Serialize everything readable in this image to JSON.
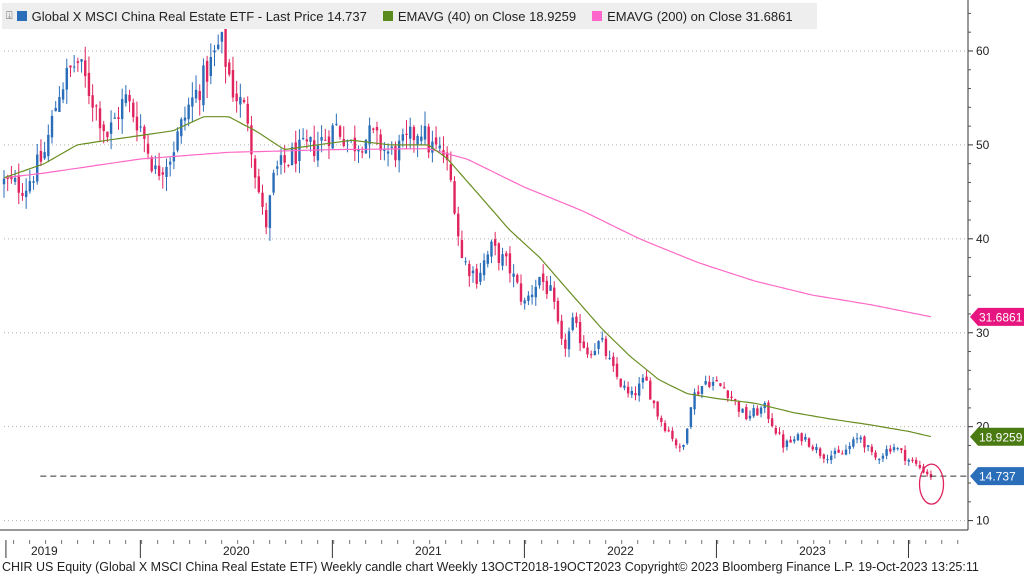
{
  "legend": {
    "menu_glyph": "⍗",
    "items": [
      {
        "label": "Global X MSCI China Real Estate ETF  - Last Price 14.737",
        "color": "#2a6db8"
      },
      {
        "label": "EMAVG (40)  on Close 18.9259",
        "color": "#5a8a1e"
      },
      {
        "label": "EMAVG (200)  on Close 31.6861",
        "color": "#ff66cc"
      }
    ]
  },
  "footer": {
    "text": "CHIR US Equity (Global X MSCI China Real Estate ETF) Weekly candle chart  Weekly 13OCT2018-19OCT2023  Copyright© 2023 Bloomberg Finance L.P.  19-Oct-2023 13:25:11"
  },
  "chart_data": {
    "type": "candlestick",
    "ylim": [
      9,
      65
    ],
    "y_ticks": [
      10,
      20,
      30,
      40,
      50,
      60
    ],
    "x_range": [
      2018.79,
      2023.81
    ],
    "x_ticks": [
      {
        "label": "2019",
        "pos": 2019.0
      },
      {
        "label": "2020",
        "pos": 2020.0
      },
      {
        "label": "2021",
        "pos": 2021.0
      },
      {
        "label": "2022",
        "pos": 2022.0
      },
      {
        "label": "2023",
        "pos": 2023.0
      }
    ],
    "colors": {
      "up": "#2a6db8",
      "down": "#e0245e",
      "ema40": "#6b8e23",
      "ema200": "#ff69c8",
      "grid": "#b0b0b0",
      "last_box": "#2a6db8",
      "ema40_box": "#4a7a12",
      "ema200_box": "#e6157f",
      "circle": "#e0245e"
    },
    "close_anchors": [
      [
        2018.79,
        46
      ],
      [
        2018.9,
        45.5
      ],
      [
        2019.0,
        49
      ],
      [
        2019.08,
        56
      ],
      [
        2019.17,
        59
      ],
      [
        2019.27,
        54
      ],
      [
        2019.33,
        51
      ],
      [
        2019.42,
        55
      ],
      [
        2019.5,
        52
      ],
      [
        2019.58,
        47
      ],
      [
        2019.66,
        49
      ],
      [
        2019.75,
        54
      ],
      [
        2019.83,
        57
      ],
      [
        2019.92,
        61
      ],
      [
        2019.98,
        56
      ],
      [
        2020.06,
        53
      ],
      [
        2020.1,
        47
      ],
      [
        2020.15,
        41
      ],
      [
        2020.2,
        47
      ],
      [
        2020.3,
        49
      ],
      [
        2020.42,
        50
      ],
      [
        2020.52,
        52
      ],
      [
        2020.6,
        50
      ],
      [
        2020.7,
        51
      ],
      [
        2020.8,
        49
      ],
      [
        2020.88,
        50
      ],
      [
        2020.96,
        52
      ],
      [
        2021.0,
        50
      ],
      [
        2021.08,
        49
      ],
      [
        2021.13,
        45
      ],
      [
        2021.17,
        38
      ],
      [
        2021.25,
        36
      ],
      [
        2021.33,
        39
      ],
      [
        2021.42,
        37
      ],
      [
        2021.5,
        33
      ],
      [
        2021.58,
        36
      ],
      [
        2021.64,
        34
      ],
      [
        2021.7,
        28
      ],
      [
        2021.75,
        31
      ],
      [
        2021.83,
        28
      ],
      [
        2021.9,
        29
      ],
      [
        2021.96,
        26
      ],
      [
        2022.05,
        23
      ],
      [
        2022.13,
        25
      ],
      [
        2022.2,
        21
      ],
      [
        2022.27,
        19
      ],
      [
        2022.32,
        17
      ],
      [
        2022.37,
        23
      ],
      [
        2022.45,
        25
      ],
      [
        2022.55,
        24
      ],
      [
        2022.65,
        21
      ],
      [
        2022.75,
        22
      ],
      [
        2022.85,
        18
      ],
      [
        2022.95,
        19
      ],
      [
        2023.05,
        17
      ],
      [
        2023.15,
        17
      ],
      [
        2023.25,
        19
      ],
      [
        2023.32,
        16.5
      ],
      [
        2023.42,
        18
      ],
      [
        2023.5,
        16.5
      ],
      [
        2023.57,
        15.5
      ],
      [
        2023.62,
        14.7
      ]
    ],
    "ema40_anchors": [
      [
        2018.79,
        46.5
      ],
      [
        2019.0,
        48
      ],
      [
        2019.17,
        50
      ],
      [
        2019.33,
        50.5
      ],
      [
        2019.5,
        51
      ],
      [
        2019.67,
        51.5
      ],
      [
        2019.83,
        53
      ],
      [
        2019.96,
        53
      ],
      [
        2020.1,
        51.5
      ],
      [
        2020.25,
        49.5
      ],
      [
        2020.42,
        50
      ],
      [
        2020.6,
        50.5
      ],
      [
        2020.8,
        50
      ],
      [
        2021.0,
        50
      ],
      [
        2021.1,
        48.5
      ],
      [
        2021.25,
        45
      ],
      [
        2021.42,
        41
      ],
      [
        2021.58,
        38
      ],
      [
        2021.75,
        34
      ],
      [
        2021.9,
        30.5
      ],
      [
        2022.05,
        27.5
      ],
      [
        2022.2,
        25
      ],
      [
        2022.35,
        23.5
      ],
      [
        2022.5,
        23
      ],
      [
        2022.7,
        22.5
      ],
      [
        2022.9,
        21.5
      ],
      [
        2023.1,
        20.8
      ],
      [
        2023.3,
        20.2
      ],
      [
        2023.5,
        19.5
      ],
      [
        2023.62,
        18.93
      ]
    ],
    "ema200_anchors": [
      [
        2018.79,
        46.5
      ],
      [
        2019.0,
        47
      ],
      [
        2019.5,
        48.5
      ],
      [
        2019.95,
        49.2
      ],
      [
        2020.5,
        49.5
      ],
      [
        2021.0,
        49.6
      ],
      [
        2021.2,
        48.5
      ],
      [
        2021.5,
        45.5
      ],
      [
        2021.8,
        43
      ],
      [
        2022.1,
        40
      ],
      [
        2022.4,
        37.5
      ],
      [
        2022.7,
        35.5
      ],
      [
        2023.0,
        34
      ],
      [
        2023.3,
        33
      ],
      [
        2023.62,
        31.69
      ]
    ],
    "last_price": 14.737,
    "ema40_last": 18.9259,
    "ema200_last": 31.6861,
    "last_price_label": "14.737",
    "ema40_label": "18.9259",
    "ema200_label": "31.6861"
  }
}
